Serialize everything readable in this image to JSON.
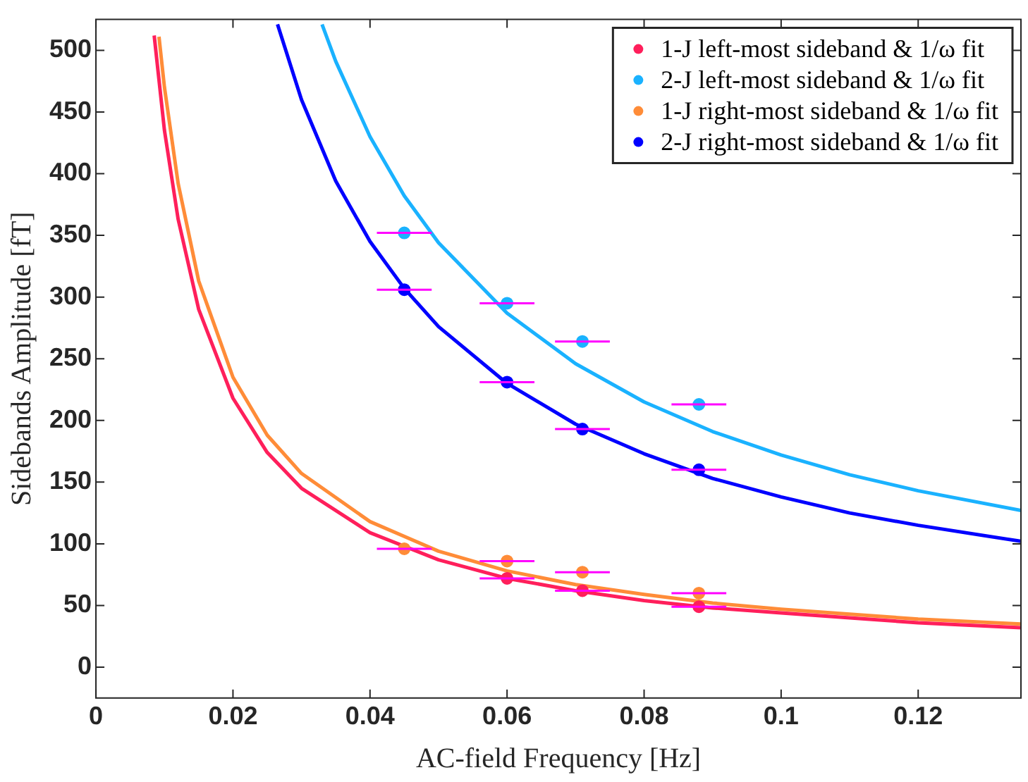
{
  "chart_data": {
    "type": "scatter",
    "xlabel": "AC-field Frequency [Hz]",
    "ylabel": "Sidebands Amplitude [fT]",
    "xlim": [
      0,
      0.135
    ],
    "ylim": [
      -25,
      525
    ],
    "xticks": [
      0,
      0.02,
      0.04,
      0.06,
      0.08,
      0.1,
      0.12
    ],
    "yticks": [
      0,
      50,
      100,
      150,
      200,
      250,
      300,
      350,
      400,
      450,
      500
    ],
    "grid": false,
    "legend": "top right",
    "series": [
      {
        "type": "line",
        "marker": "none",
        "line_style": "solid",
        "color": "#ff1f5b",
        "x": [
          0.0085,
          0.01,
          0.012,
          0.015,
          0.02,
          0.025,
          0.03,
          0.04,
          0.05,
          0.06,
          0.07,
          0.08,
          0.09,
          0.1,
          0.11,
          0.12,
          0.135
        ],
        "values": [
          512,
          435,
          363,
          290,
          218,
          174,
          145,
          109,
          87,
          72,
          62,
          54,
          48,
          44,
          40,
          36,
          32
        ]
      },
      {
        "type": "line",
        "marker": "none",
        "line_style": "solid",
        "color": "#1ab2ff",
        "x": [
          0.033,
          0.035,
          0.04,
          0.045,
          0.05,
          0.06,
          0.07,
          0.08,
          0.09,
          0.1,
          0.11,
          0.12,
          0.135
        ],
        "values": [
          521,
          491,
          430,
          382,
          344,
          287,
          246,
          215,
          191,
          172,
          156,
          143,
          127
        ]
      },
      {
        "type": "line",
        "marker": "none",
        "line_style": "solid",
        "color": "#ff8c38",
        "x": [
          0.0092,
          0.01,
          0.012,
          0.015,
          0.02,
          0.025,
          0.03,
          0.04,
          0.05,
          0.06,
          0.07,
          0.08,
          0.09,
          0.1,
          0.11,
          0.12,
          0.135
        ],
        "values": [
          511,
          470,
          392,
          313,
          235,
          188,
          157,
          118,
          94,
          78,
          67,
          59,
          52,
          47,
          43,
          39,
          35
        ]
      },
      {
        "type": "line",
        "marker": "none",
        "line_style": "solid",
        "color": "#0000ff",
        "x": [
          0.0265,
          0.03,
          0.035,
          0.04,
          0.045,
          0.05,
          0.06,
          0.07,
          0.08,
          0.09,
          0.1,
          0.11,
          0.12,
          0.135
        ],
        "values": [
          521,
          460,
          394,
          345,
          307,
          276,
          230,
          197,
          173,
          153,
          138,
          125,
          115,
          102
        ]
      },
      {
        "name": "1-J left-most sideband & 1/ω fit",
        "type": "scatter",
        "marker": "circle",
        "color": "#ff1f5b",
        "x": [
          0.06,
          0.071,
          0.088
        ],
        "values": [
          72,
          62,
          49
        ],
        "xerrors": [
          0.004,
          0.004,
          0.004
        ]
      },
      {
        "name": "2-J left-most sideband & 1/ω fit",
        "type": "scatter",
        "marker": "circle",
        "color": "#1ab2ff",
        "x": [
          0.045,
          0.06,
          0.071,
          0.088
        ],
        "values": [
          352,
          295,
          264,
          213
        ],
        "xerrors": [
          0.004,
          0.004,
          0.004,
          0.004
        ]
      },
      {
        "name": "1-J right-most sideband & 1/ω fit",
        "type": "scatter",
        "marker": "circle",
        "color": "#ff8c38",
        "x": [
          0.045,
          0.06,
          0.071,
          0.088
        ],
        "values": [
          96,
          86,
          77,
          60
        ],
        "xerrors": [
          0.004,
          0.004,
          0.004,
          0.004
        ]
      },
      {
        "name": "2-J right-most sideband & 1/ω fit",
        "type": "scatter",
        "marker": "circle",
        "color": "#0000ff",
        "x": [
          0.045,
          0.06,
          0.071,
          0.088
        ],
        "values": [
          306,
          231,
          193,
          160
        ],
        "xerrors": [
          0.004,
          0.004,
          0.004,
          0.004
        ]
      }
    ]
  }
}
